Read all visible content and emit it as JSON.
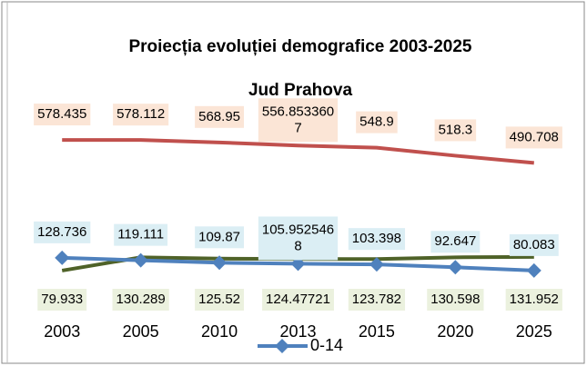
{
  "chart_data": {
    "type": "line",
    "title": "Proiecția evoluției demografice 2003-2025",
    "subtitle": "Jud Prahova",
    "categories": [
      "2003",
      "2005",
      "2010",
      "2013",
      "2015",
      "2020",
      "2025"
    ],
    "ylim": [
      0,
      700
    ],
    "series": [
      {
        "color": "#c0504d",
        "label_color": "#fbe5d6",
        "values": [
          578.435,
          578.112,
          568.95,
          556.8533607,
          548.9,
          518.3,
          490.708
        ],
        "value_labels": [
          "578.435",
          "578.112",
          "568.95",
          "556.8533607",
          "548.9",
          "518.3",
          "490.708"
        ]
      },
      {
        "name": "0-14",
        "color": "#4f81bd",
        "label_color": "#dbeef4",
        "values": [
          128.736,
          119.111,
          109.87,
          105.9525468,
          103.398,
          92.647,
          80.083
        ],
        "value_labels": [
          "128.736",
          "119.111",
          "109.87",
          "105.9525468",
          "103.398",
          "92.647",
          "80.083"
        ]
      },
      {
        "color": "#4f6228",
        "label_color": "#ebf1de",
        "values": [
          79.933,
          130.289,
          125.52,
          124.47721,
          123.782,
          130.598,
          131.952
        ],
        "value_labels": [
          "79.933",
          "130.289",
          "125.52",
          "124.47721",
          "123.782",
          "130.598",
          "131.952"
        ]
      }
    ]
  }
}
